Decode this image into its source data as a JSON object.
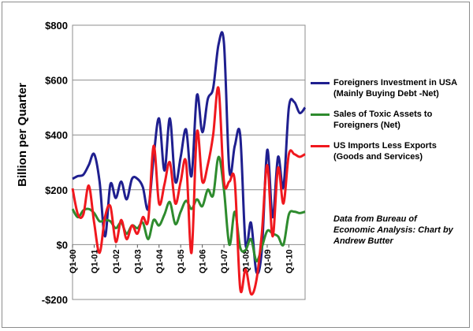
{
  "chart_data": {
    "type": "line",
    "ylabel": "Billion per Quarter",
    "ylim": [
      -200,
      800
    ],
    "yticks": [
      800,
      600,
      400,
      200,
      0,
      -200
    ],
    "ytick_labels": [
      "$800",
      "$600",
      "$400",
      "$200",
      "$0",
      "-$200"
    ],
    "x_range": [
      0,
      43
    ],
    "xticks": [
      0,
      4,
      8,
      12,
      16,
      20,
      24,
      28,
      32,
      36,
      40
    ],
    "xtick_labels": [
      "Q1-00",
      "Q1-01",
      "Q1-02",
      "Q1-03",
      "Q1-04",
      "Q1-05",
      "Q1-06",
      "Q1-07",
      "Q1-08",
      "Q1-09",
      "Q1-10"
    ],
    "gridlines": true,
    "series": [
      {
        "name": "Foreigners Investment in USA (Mainly Buying Debt -Net)",
        "legend_lines": [
          "Foreigners Investment in USA",
          "(Mainly Buying Debt -Net)"
        ],
        "color": "#1f1f8f",
        "x": [
          0,
          1,
          2,
          3,
          4,
          5,
          6,
          7,
          8,
          9,
          10,
          11,
          12,
          13,
          14,
          15,
          16,
          17,
          18,
          19,
          20,
          21,
          22,
          23,
          24,
          25,
          26,
          27,
          28,
          29,
          30,
          31,
          32,
          33,
          34,
          35,
          36,
          37,
          38,
          39,
          40,
          41,
          42,
          43
        ],
        "values": [
          240,
          250,
          255,
          290,
          330,
          230,
          30,
          220,
          170,
          230,
          165,
          240,
          240,
          210,
          130,
          320,
          460,
          270,
          460,
          230,
          320,
          420,
          250,
          545,
          410,
          530,
          570,
          730,
          735,
          270,
          360,
          400,
          0,
          80,
          -100,
          -20,
          345,
          100,
          320,
          210,
          500,
          520,
          480,
          500
        ]
      },
      {
        "name": "Sales of Toxic Assets to Foreigners (Net)",
        "legend_lines": [
          "Sales of Toxic Assets to",
          "Foreigners (Net)"
        ],
        "color": "#2e8b2e",
        "x": [
          0,
          1,
          2,
          3,
          4,
          5,
          6,
          7,
          8,
          9,
          10,
          11,
          12,
          13,
          14,
          15,
          16,
          17,
          18,
          19,
          20,
          21,
          22,
          23,
          24,
          25,
          26,
          27,
          28,
          29,
          30,
          31,
          32,
          33,
          34,
          35,
          36,
          37,
          38,
          39,
          40,
          41,
          42,
          43
        ],
        "values": [
          130,
          100,
          125,
          130,
          115,
          85,
          90,
          85,
          60,
          80,
          40,
          70,
          60,
          80,
          20,
          90,
          70,
          110,
          155,
          75,
          120,
          160,
          130,
          165,
          140,
          200,
          180,
          320,
          200,
          0,
          120,
          -10,
          -20,
          20,
          -60,
          -10,
          50,
          40,
          30,
          0,
          110,
          120,
          115,
          120
        ]
      },
      {
        "name": "US Imports Less Exports (Goods and Services)",
        "legend_lines": [
          "US Imports  Less Exports",
          "(Goods and Services)"
        ],
        "color": "#f0181e",
        "x": [
          0,
          1,
          2,
          3,
          4,
          5,
          6,
          7,
          8,
          9,
          10,
          11,
          12,
          13,
          14,
          15,
          16,
          17,
          18,
          19,
          20,
          21,
          22,
          23,
          24,
          25,
          26,
          27,
          28,
          29,
          30,
          31,
          32,
          33,
          34,
          35,
          36,
          37,
          38,
          39,
          40,
          41,
          42,
          43
        ],
        "values": [
          205,
          110,
          110,
          215,
          80,
          -30,
          100,
          140,
          10,
          90,
          20,
          70,
          40,
          100,
          90,
          360,
          150,
          220,
          300,
          150,
          230,
          300,
          -30,
          410,
          230,
          290,
          400,
          570,
          230,
          230,
          230,
          -160,
          -90,
          -180,
          -130,
          40,
          290,
          30,
          280,
          150,
          330,
          330,
          320,
          330
        ]
      }
    ],
    "annotation": [
      "Data from Bureau of",
      "Economic Analysis: Chart by",
      "Andrew Butter"
    ]
  }
}
